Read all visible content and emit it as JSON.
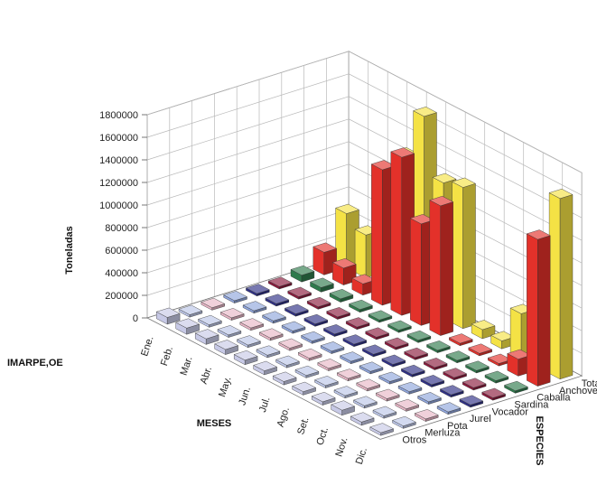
{
  "source_label": "IMARPE,OE",
  "chart_data": {
    "type": "bar3d",
    "zlabel": "Toneladas",
    "xlabel": "MESES",
    "ylabel": "ESPECIES",
    "zlim": [
      0,
      1800000
    ],
    "z_ticks": [
      "1800000",
      "1600000",
      "1400000",
      "1200000",
      "1000000",
      "800000",
      "600000",
      "400000",
      "200000",
      "0"
    ],
    "months": [
      "Ene.",
      "Feb.",
      "Mar.",
      "Abr.",
      "May.",
      "Jun.",
      "Jul.",
      "Ago.",
      "Set.",
      "Oct.",
      "Nov.",
      "Dic."
    ],
    "species": [
      "Otros",
      "Merluza",
      "Pota",
      "Jurel",
      "Vocador",
      "Sardina",
      "Caballa",
      "Anchoveta",
      "Total General"
    ],
    "colors": {
      "Otros": "#c7c9e6",
      "Merluza": "#bcc6e8",
      "Pota": "#e8b6c6",
      "Jurel": "#8fa5dc",
      "Vocador": "#2e2f86",
      "Sardina": "#8a1a3c",
      "Caballa": "#2f7a4c",
      "Anchoveta": "#e3312a",
      "Total General": "#f4e245"
    },
    "series": [
      {
        "name": "Otros",
        "values": [
          60000,
          55000,
          50000,
          45000,
          40000,
          35000,
          30000,
          30000,
          30000,
          45000,
          30000,
          25000
        ]
      },
      {
        "name": "Merluza",
        "values": [
          15000,
          15000,
          15000,
          15000,
          15000,
          15000,
          15000,
          15000,
          15000,
          15000,
          15000,
          15000
        ]
      },
      {
        "name": "Pota",
        "values": [
          15000,
          15000,
          15000,
          15000,
          15000,
          15000,
          15000,
          15000,
          15000,
          15000,
          15000,
          15000
        ]
      },
      {
        "name": "Jurel",
        "values": [
          20000,
          20000,
          20000,
          20000,
          20000,
          20000,
          20000,
          20000,
          20000,
          20000,
          20000,
          20000
        ]
      },
      {
        "name": "Vocador",
        "values": [
          15000,
          15000,
          15000,
          15000,
          15000,
          15000,
          15000,
          15000,
          15000,
          15000,
          15000,
          15000
        ]
      },
      {
        "name": "Sardina",
        "values": [
          20000,
          20000,
          20000,
          20000,
          20000,
          20000,
          20000,
          20000,
          20000,
          20000,
          20000,
          20000
        ]
      },
      {
        "name": "Caballa",
        "values": [
          60000,
          40000,
          30000,
          25000,
          20000,
          20000,
          20000,
          20000,
          20000,
          20000,
          20000,
          20000
        ]
      },
      {
        "name": "Anchoveta",
        "values": [
          200000,
          150000,
          100000,
          1200000,
          1400000,
          900000,
          1150000,
          0,
          0,
          0,
          150000,
          1300000
        ]
      },
      {
        "name": "Total General",
        "values": [
          480000,
          380000,
          340000,
          1250000,
          1700000,
          1200000,
          1250000,
          80000,
          70000,
          400000,
          1100000,
          1600000
        ]
      }
    ]
  }
}
